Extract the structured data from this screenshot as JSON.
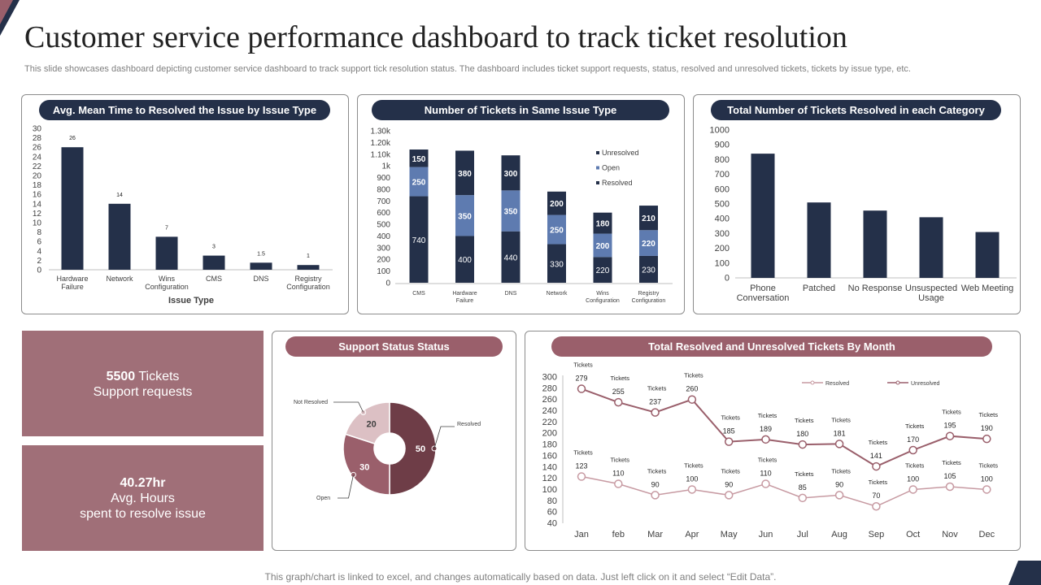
{
  "page": {
    "title": "Customer service performance dashboard to track ticket resolution",
    "subtitle": "This slide showcases dashboard depicting customer service dashboard to track support tick resolution status. The dashboard includes ticket support requests, status, resolved and unresolved tickets, tickets by issue type, etc.",
    "footer": "This graph/chart is linked to excel,  and changes automatically based on data. Just left click on it and select “Edit Data”."
  },
  "colors": {
    "navy": "#243049",
    "mid_blue": "#5e7bb0",
    "rose": "#9a5f6b",
    "kpi_bg": "#a06f78",
    "light_rose": "#c79aa2",
    "pale_rose": "#dcc0c4",
    "dark_maroon": "#6e3d47"
  },
  "kpis": {
    "requests": {
      "value": "5500",
      "unit": "Tickets",
      "label": "Support requests"
    },
    "hours": {
      "value": "40.27hr",
      "label1": "Avg. Hours",
      "label2": "spent to resolve issue"
    }
  },
  "chart_data": [
    {
      "id": "avg_time",
      "type": "bar",
      "title": "Avg. Mean Time to Resolved the Issue by Issue Type",
      "xlabel": "Issue Type",
      "categories": [
        [
          "Hardware",
          "Failure"
        ],
        [
          "Network"
        ],
        [
          "Wins",
          "Configuration"
        ],
        [
          "CMS"
        ],
        [
          "DNS"
        ],
        [
          "Registry",
          "Configuration"
        ]
      ],
      "values": [
        26,
        14,
        7,
        3,
        1.5,
        1
      ],
      "value_labels": [
        "26",
        "14",
        "7",
        "3",
        "1.5",
        "1"
      ],
      "ylim": [
        0,
        30
      ],
      "yticks": [
        "0",
        "2",
        "4",
        "6",
        "8",
        "10",
        "12",
        "14",
        "16",
        "18",
        "20",
        "22",
        "24",
        "26",
        "28",
        "30"
      ]
    },
    {
      "id": "same_issue",
      "type": "bar",
      "stacked": true,
      "title": "Number of Tickets in Same Issue Type",
      "categories": [
        [
          "CMS"
        ],
        [
          "Hardware",
          "Failure"
        ],
        [
          "DNS"
        ],
        [
          "Network"
        ],
        [
          "Wins",
          "Configuration"
        ],
        [
          "Registry",
          "Configuration"
        ]
      ],
      "series": [
        {
          "name": "Resolved",
          "values": [
            740,
            400,
            440,
            330,
            220,
            230
          ]
        },
        {
          "name": "Open",
          "values": [
            250,
            350,
            350,
            250,
            200,
            220
          ]
        },
        {
          "name": "Unresolved",
          "values": [
            150,
            380,
            300,
            200,
            180,
            210
          ]
        }
      ],
      "legend": [
        "Unresolved",
        "Open",
        "Resolved"
      ],
      "ylim": [
        0,
        1300
      ],
      "yticks": [
        "0",
        "100",
        "200",
        "300",
        "400",
        "500",
        "600",
        "700",
        "800",
        "900",
        "1k",
        "1.10k",
        "1.20k",
        "1.30k"
      ]
    },
    {
      "id": "resolved_category",
      "type": "bar",
      "title": "Total Number of Tickets Resolved in each Category",
      "categories": [
        [
          "Phone",
          "Conversation"
        ],
        [
          "Patched"
        ],
        [
          "No Response"
        ],
        [
          "Unsuspected",
          "Usage"
        ],
        [
          "Web Meeting"
        ]
      ],
      "values": [
        840,
        510,
        455,
        410,
        310
      ],
      "ylim": [
        0,
        1000
      ],
      "yticks": [
        "0",
        "100",
        "200",
        "300",
        "400",
        "500",
        "600",
        "700",
        "800",
        "900",
        "1000"
      ]
    },
    {
      "id": "support_status",
      "type": "pie",
      "title": "Support Status Status",
      "slices": [
        {
          "label": "Resolved",
          "value": 50
        },
        {
          "label": "Open",
          "value": 30
        },
        {
          "label": "Not Resolved",
          "value": 20
        }
      ]
    },
    {
      "id": "monthly",
      "type": "line",
      "title": "Total Resolved and Unresolved Tickets By Month",
      "categories": [
        "Jan",
        "feb",
        "Mar",
        "Apr",
        "May",
        "Jun",
        "Jul",
        "Aug",
        "Sep",
        "Oct",
        "Nov",
        "Dec"
      ],
      "series": [
        {
          "name": "Resolved",
          "values": [
            123,
            110,
            90,
            100,
            90,
            110,
            85,
            90,
            70,
            100,
            105,
            100
          ]
        },
        {
          "name": "Unresolved",
          "values": [
            279,
            255,
            237,
            260,
            185,
            189,
            180,
            181,
            141,
            170,
            195,
            190
          ]
        }
      ],
      "point_tag": "Tickets",
      "ylim": [
        40,
        300
      ],
      "yticks": [
        "40",
        "60",
        "80",
        "100",
        "120",
        "140",
        "160",
        "180",
        "200",
        "220",
        "240",
        "260",
        "280",
        "300"
      ]
    }
  ]
}
